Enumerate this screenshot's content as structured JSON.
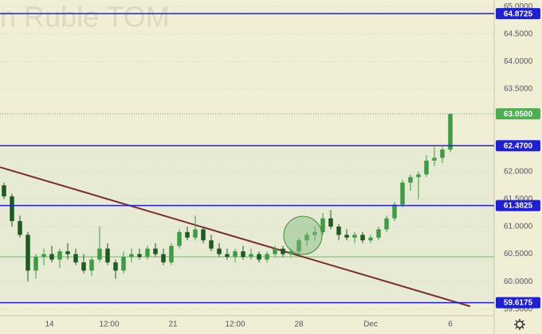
{
  "chart_data": {
    "type": "candlestick",
    "watermark": "an Ruble TOM",
    "up_color": "#3f9b45",
    "down_color": "#1e5a24",
    "open": [
      61.75,
      61.55,
      61.1,
      60.85,
      60.2,
      60.45,
      60.5,
      60.4,
      60.55,
      60.5,
      60.35,
      60.2,
      60.4,
      60.6,
      60.35,
      60.2,
      60.45,
      60.5,
      60.45,
      60.6,
      60.5,
      60.35,
      60.65,
      60.9,
      60.8,
      60.95,
      60.75,
      60.6,
      60.5,
      60.45,
      60.55,
      60.45,
      60.5,
      60.4,
      60.5,
      60.6,
      60.5,
      60.55,
      60.75,
      60.85,
      60.9,
      61.15,
      61.0,
      60.85,
      60.8,
      60.85,
      60.75,
      60.8,
      60.95,
      61.15,
      61.4,
      61.8,
      61.9,
      61.95,
      62.2,
      62.25,
      62.4
    ],
    "high": [
      61.8,
      61.6,
      61.2,
      60.9,
      60.5,
      60.6,
      60.65,
      60.6,
      60.7,
      60.6,
      60.5,
      60.45,
      61.0,
      60.7,
      60.4,
      60.55,
      60.6,
      60.6,
      60.65,
      60.7,
      60.6,
      60.7,
      60.95,
      61.0,
      61.2,
      61.0,
      60.85,
      60.7,
      60.6,
      60.6,
      60.65,
      60.6,
      60.55,
      60.55,
      60.65,
      60.65,
      60.6,
      60.8,
      60.9,
      61.0,
      61.25,
      61.3,
      61.05,
      60.95,
      60.9,
      60.9,
      60.85,
      61.0,
      61.2,
      61.45,
      61.85,
      61.95,
      62.0,
      62.3,
      62.45,
      62.45,
      63.05
    ],
    "low": [
      61.5,
      61.0,
      60.8,
      60.0,
      60.05,
      60.3,
      60.35,
      60.25,
      60.4,
      60.3,
      60.15,
      60.1,
      60.35,
      60.3,
      60.05,
      60.15,
      60.35,
      60.4,
      60.4,
      60.45,
      60.3,
      60.3,
      60.6,
      60.75,
      60.75,
      60.7,
      60.55,
      60.45,
      60.4,
      60.35,
      60.4,
      60.4,
      60.35,
      60.35,
      60.45,
      60.45,
      60.45,
      60.5,
      60.65,
      60.75,
      60.85,
      60.95,
      60.75,
      60.75,
      60.7,
      60.7,
      60.7,
      60.75,
      60.9,
      61.1,
      61.35,
      61.65,
      61.5,
      61.9,
      62.1,
      62.15,
      62.35
    ],
    "close": [
      61.55,
      61.1,
      60.85,
      60.2,
      60.45,
      60.5,
      60.4,
      60.55,
      60.5,
      60.35,
      60.2,
      60.4,
      60.6,
      60.35,
      60.2,
      60.45,
      60.5,
      60.45,
      60.6,
      60.5,
      60.35,
      60.65,
      60.9,
      60.8,
      60.95,
      60.75,
      60.6,
      60.5,
      60.45,
      60.55,
      60.45,
      60.5,
      60.4,
      60.5,
      60.6,
      60.5,
      60.55,
      60.75,
      60.85,
      60.9,
      61.15,
      61.0,
      60.85,
      60.8,
      60.85,
      60.75,
      60.8,
      60.95,
      61.15,
      61.4,
      61.8,
      61.9,
      61.95,
      62.2,
      62.25,
      62.4,
      63.05
    ],
    "xlim": [
      -0.5,
      61.5
    ],
    "xticks": [
      {
        "value": 5.7,
        "label": "14"
      },
      {
        "value": 13.2,
        "label": "12:00"
      },
      {
        "value": 21.2,
        "label": "21"
      },
      {
        "value": 29,
        "label": "12:00"
      },
      {
        "value": 37,
        "label": "28"
      },
      {
        "value": 46,
        "label": "Dec"
      },
      {
        "value": 56,
        "label": "6"
      }
    ],
    "ylim": [
      59.38,
      65.12
    ],
    "yticks": [
      {
        "value": 59.5,
        "label": "59.5000"
      },
      {
        "value": 60,
        "label": "60.0000"
      },
      {
        "value": 60.5,
        "label": "60.5000"
      },
      {
        "value": 61,
        "label": "61.0000"
      },
      {
        "value": 61.5,
        "label": "61.5000"
      },
      {
        "value": 62,
        "label": "62.0000"
      },
      {
        "value": 62.5,
        "label": "62.5000"
      },
      {
        "value": 63,
        "label": "63.0000"
      },
      {
        "value": 63.5,
        "label": "63.5000"
      },
      {
        "value": 64,
        "label": "64.0000"
      },
      {
        "value": 64.5,
        "label": "64.5000"
      },
      {
        "value": 65,
        "label": "65.0000"
      }
    ],
    "grid": true,
    "levels": [
      {
        "value": 64.8725,
        "label": "64.8725",
        "color": "#1f1fd6"
      },
      {
        "value": 63.05,
        "label": "63.0500",
        "color": "#4caf50",
        "dotted": true
      },
      {
        "value": 62.47,
        "label": "62.4700",
        "color": "#1f1fd6"
      },
      {
        "value": 61.3825,
        "label": "61.3825",
        "color": "#1f1fd6"
      },
      {
        "value": 59.6175,
        "label": "59.6175",
        "color": "#1f1fd6"
      }
    ],
    "support_line": {
      "value": 60.45,
      "color": "#66bb6a"
    },
    "trendline": {
      "x": [
        -0.5,
        58.5
      ],
      "y": [
        62.08,
        59.55
      ],
      "color": "#7b2d2d"
    }
  }
}
